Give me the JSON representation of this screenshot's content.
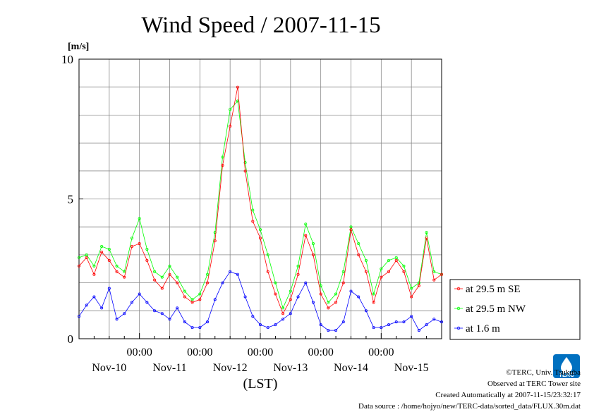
{
  "chart_data": {
    "type": "line",
    "title": "Wind Speed / 2007-11-15",
    "ylabel": "[m/s]",
    "xlabel": "(LST)",
    "ylim": [
      0,
      10
    ],
    "yticks": [
      0,
      5,
      10
    ],
    "xtick_time_labels": [
      "00:00",
      "00:00",
      "00:00",
      "00:00",
      "00:00"
    ],
    "xtick_day_labels": [
      "Nov-10",
      "Nov-11",
      "Nov-12",
      "Nov-13",
      "Nov-14",
      "Nov-15"
    ],
    "x_unit": "hours since 2007-11-09 00:00 LST",
    "xlim": [
      0,
      144
    ],
    "grid": true,
    "legend_placement": "right, outside plot",
    "series": [
      {
        "name": "at 29.5 m SE",
        "color": "#ff0000",
        "x": [
          0,
          3,
          6,
          9,
          12,
          15,
          18,
          21,
          24,
          27,
          30,
          33,
          36,
          39,
          42,
          45,
          48,
          51,
          54,
          57,
          60,
          63,
          66,
          69,
          72,
          75,
          78,
          81,
          84,
          87,
          90,
          93,
          96,
          99,
          102,
          105,
          108,
          111,
          114,
          117,
          120,
          123,
          126,
          129,
          132,
          135,
          138,
          141,
          144
        ],
        "y": [
          2.6,
          2.9,
          2.3,
          3.1,
          2.8,
          2.4,
          2.2,
          3.3,
          3.4,
          2.8,
          2.1,
          1.8,
          2.3,
          2.0,
          1.5,
          1.3,
          1.4,
          2.0,
          3.5,
          6.2,
          7.6,
          9.0,
          6.0,
          4.2,
          3.6,
          2.4,
          1.6,
          0.9,
          1.4,
          2.3,
          3.7,
          3.0,
          1.6,
          1.1,
          1.3,
          2.0,
          3.9,
          3.0,
          2.4,
          1.3,
          2.2,
          2.4,
          2.8,
          2.4,
          1.5,
          1.9,
          3.6,
          2.1,
          2.3
        ]
      },
      {
        "name": "at 29.5 m NW",
        "color": "#00ff00",
        "x": [
          0,
          3,
          6,
          9,
          12,
          15,
          18,
          21,
          24,
          27,
          30,
          33,
          36,
          39,
          42,
          45,
          48,
          51,
          54,
          57,
          60,
          63,
          66,
          69,
          72,
          75,
          78,
          81,
          84,
          87,
          90,
          93,
          96,
          99,
          102,
          105,
          108,
          111,
          114,
          117,
          120,
          123,
          126,
          129,
          132,
          135,
          138,
          141,
          144
        ],
        "y": [
          2.9,
          3.0,
          2.6,
          3.3,
          3.2,
          2.6,
          2.4,
          3.6,
          4.3,
          3.2,
          2.4,
          2.2,
          2.6,
          2.2,
          1.7,
          1.4,
          1.6,
          2.3,
          3.8,
          6.5,
          8.2,
          8.5,
          6.3,
          4.6,
          3.9,
          3.0,
          2.0,
          1.1,
          1.7,
          2.6,
          4.1,
          3.4,
          1.9,
          1.3,
          1.6,
          2.4,
          4.0,
          3.4,
          2.8,
          1.6,
          2.5,
          2.8,
          2.9,
          2.6,
          1.8,
          2.0,
          3.8,
          2.4,
          2.3
        ]
      },
      {
        "name": "at 1.6 m",
        "color": "#0000ff",
        "x": [
          0,
          3,
          6,
          9,
          12,
          15,
          18,
          21,
          24,
          27,
          30,
          33,
          36,
          39,
          42,
          45,
          48,
          51,
          54,
          57,
          60,
          63,
          66,
          69,
          72,
          75,
          78,
          81,
          84,
          87,
          90,
          93,
          96,
          99,
          102,
          105,
          108,
          111,
          114,
          117,
          120,
          123,
          126,
          129,
          132,
          135,
          138,
          141,
          144
        ],
        "y": [
          0.8,
          1.2,
          1.5,
          1.1,
          1.8,
          0.7,
          0.9,
          1.3,
          1.6,
          1.3,
          1.0,
          0.9,
          0.7,
          1.1,
          0.6,
          0.4,
          0.4,
          0.6,
          1.4,
          2.0,
          2.4,
          2.3,
          1.5,
          0.8,
          0.5,
          0.4,
          0.5,
          0.7,
          0.9,
          1.5,
          2.0,
          1.3,
          0.5,
          0.3,
          0.3,
          0.6,
          1.7,
          1.5,
          1.0,
          0.4,
          0.4,
          0.5,
          0.6,
          0.6,
          0.8,
          0.3,
          0.5,
          0.7,
          0.6
        ]
      }
    ]
  },
  "credits": {
    "line1": "©TERC, Univ. Tsukuba",
    "line2": "Observed at TERC Tower site",
    "line3": "Created Automatically at 2007-11-15/23:32:17",
    "line4": "Data source : /home/hojyo/new/TERC-data/sorted_data/FLUX.30m.dat"
  },
  "logo": {
    "text": "TERC",
    "color": "#0070c0"
  }
}
